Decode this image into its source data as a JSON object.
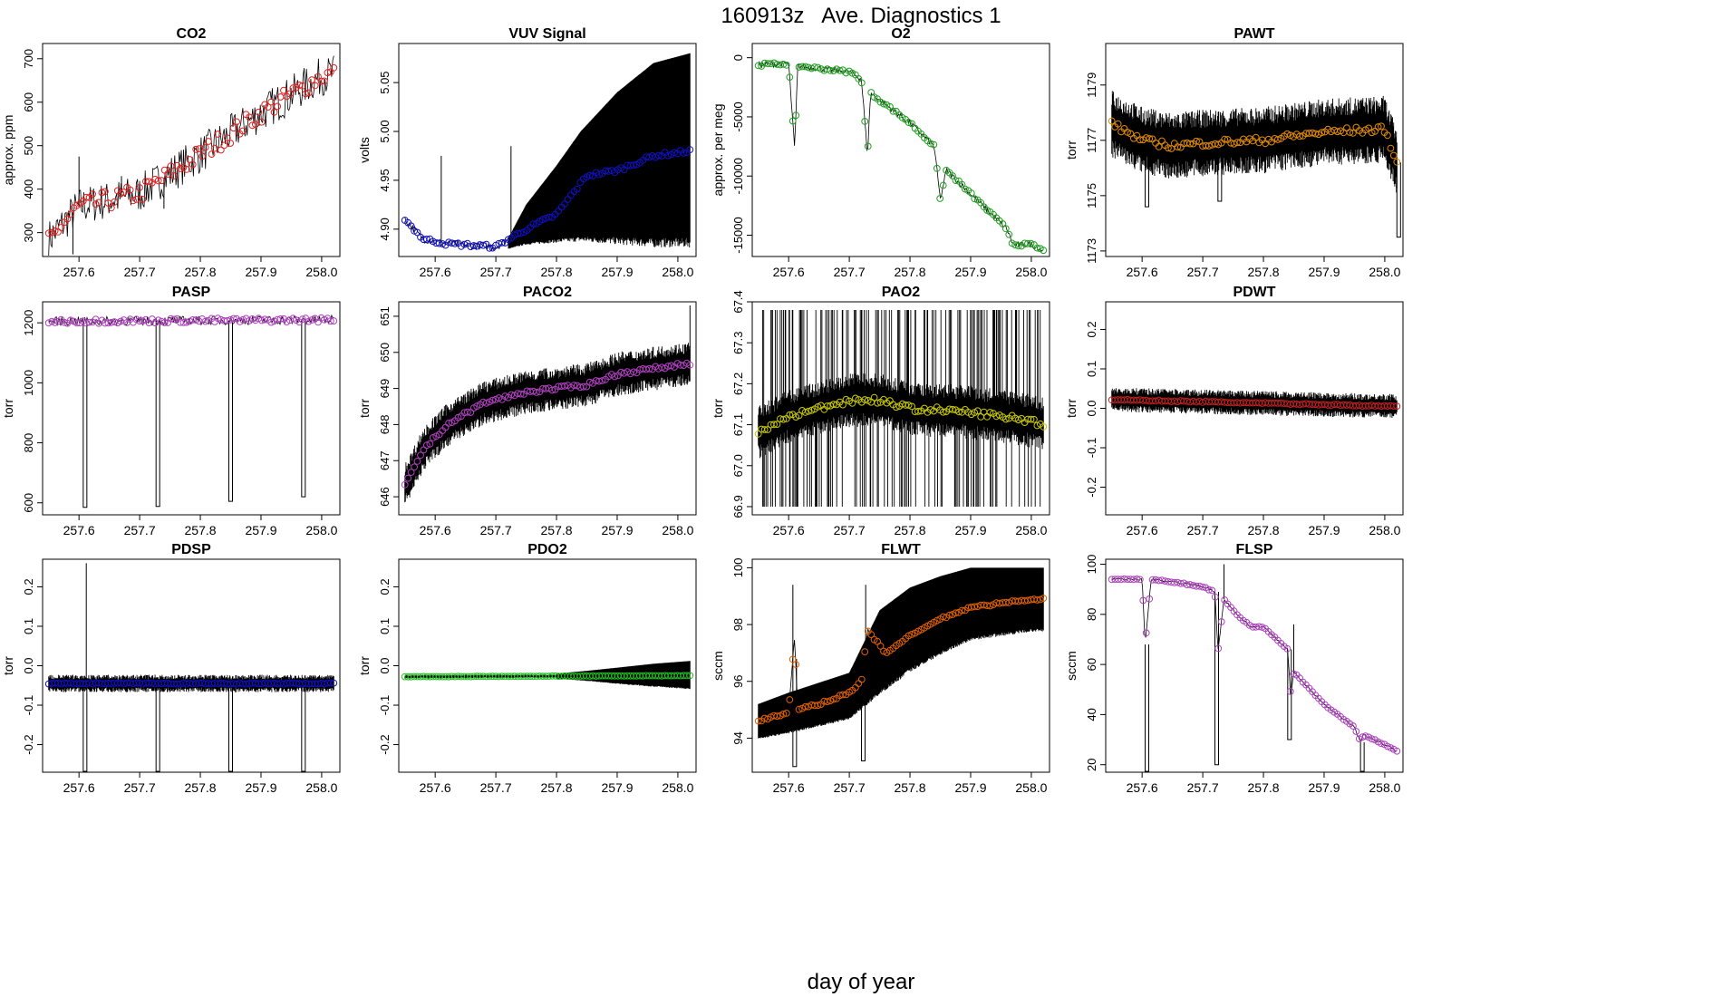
{
  "figure": {
    "title": "160913z   Ave. Diagnostics 1",
    "xlabel": "day of year"
  },
  "chart_data": [
    {
      "type": "line",
      "title": "CO2",
      "ylabel": "approx. ppm",
      "xlim": [
        257.54,
        258.03
      ],
      "ylim": [
        245,
        735
      ],
      "xticks": [
        "257.6",
        "257.7",
        "257.8",
        "257.9",
        "258.0"
      ],
      "yticks": [
        300,
        400,
        500,
        600,
        700
      ],
      "yticklabels": [
        "300",
        "400",
        "500",
        "600",
        "700"
      ],
      "color": "#e02020",
      "trend": [
        [
          257.55,
          285
        ],
        [
          257.6,
          360
        ],
        [
          257.7,
          390
        ],
        [
          257.8,
          480
        ],
        [
          257.9,
          575
        ],
        [
          258.0,
          660
        ],
        [
          258.02,
          665
        ]
      ],
      "noise": 45,
      "band": 0,
      "dips": [],
      "spikes": [
        [
          257.6,
          475
        ],
        [
          257.59,
          250
        ],
        [
          257.67,
          430
        ],
        [
          257.74,
          355
        ]
      ]
    },
    {
      "type": "line",
      "title": "VUV Signal",
      "ylabel": "volts",
      "xlim": [
        257.54,
        258.03
      ],
      "ylim": [
        4.872,
        5.09
      ],
      "xticks": [
        "257.6",
        "257.7",
        "257.8",
        "257.9",
        "258.0"
      ],
      "yticks": [
        4.9,
        4.95,
        5.0,
        5.05
      ],
      "yticklabels": [
        "4.90",
        "4.95",
        "5.00",
        "5.05"
      ],
      "color": "#1010c0",
      "trend": [
        [
          257.55,
          4.91
        ],
        [
          257.58,
          4.89
        ],
        [
          257.62,
          4.885
        ],
        [
          257.7,
          4.882
        ],
        [
          257.75,
          4.9
        ],
        [
          257.8,
          4.915
        ],
        [
          257.85,
          4.955
        ],
        [
          257.9,
          4.96
        ],
        [
          257.96,
          4.975
        ],
        [
          258.02,
          4.98
        ]
      ],
      "noise": 0.004,
      "band": 0,
      "envelope": [
        [
          257.72,
          4.88,
          4.89
        ],
        [
          257.75,
          4.885,
          4.925
        ],
        [
          257.8,
          4.888,
          4.965
        ],
        [
          257.84,
          4.89,
          5.0
        ],
        [
          257.9,
          4.888,
          5.04
        ],
        [
          257.96,
          4.886,
          5.07
        ],
        [
          258.02,
          4.886,
          5.08
        ]
      ],
      "dips": [],
      "spikes": [
        [
          257.61,
          4.975
        ],
        [
          257.725,
          4.985
        ]
      ]
    },
    {
      "type": "line",
      "title": "O2",
      "ylabel": "approx. per meg",
      "xlim": [
        257.54,
        258.03
      ],
      "ylim": [
        -16800,
        1200
      ],
      "xticks": [
        "257.6",
        "257.7",
        "257.8",
        "257.9",
        "258.0"
      ],
      "yticks": [
        0,
        -5000,
        -10000,
        -15000
      ],
      "yticklabels": [
        "0",
        "-5000",
        "-10000",
        "-15000"
      ],
      "color": "#20a020",
      "trend": [
        [
          257.55,
          -600
        ],
        [
          257.6,
          -500
        ],
        [
          257.61,
          -7800
        ],
        [
          257.615,
          -700
        ],
        [
          257.7,
          -1200
        ],
        [
          257.72,
          -1800
        ],
        [
          257.73,
          -8300
        ],
        [
          257.735,
          -3000
        ],
        [
          257.8,
          -5500
        ],
        [
          257.84,
          -7500
        ],
        [
          257.85,
          -12000
        ],
        [
          257.86,
          -9500
        ],
        [
          257.9,
          -11500
        ],
        [
          257.96,
          -14500
        ],
        [
          257.97,
          -15800
        ],
        [
          258.0,
          -15800
        ],
        [
          258.02,
          -16300
        ]
      ],
      "noise": 250,
      "band": 0,
      "dips": [],
      "spikes": []
    },
    {
      "type": "line",
      "title": "PAWT",
      "ylabel": "torr",
      "xlim": [
        257.54,
        258.03
      ],
      "ylim": [
        1172.8,
        1180.5
      ],
      "xticks": [
        "257.6",
        "257.7",
        "257.8",
        "257.9",
        "258.0"
      ],
      "yticks": [
        1173,
        1175,
        1177,
        1179
      ],
      "yticklabels": [
        "1173",
        "1175",
        "1177",
        "1179"
      ],
      "color": "#e08a00",
      "trend": [
        [
          257.55,
          1177.6
        ],
        [
          257.6,
          1177.0
        ],
        [
          257.65,
          1176.8
        ],
        [
          257.7,
          1176.9
        ],
        [
          257.8,
          1177.0
        ],
        [
          257.9,
          1177.3
        ],
        [
          258.0,
          1177.4
        ],
        [
          258.02,
          1176.2
        ]
      ],
      "noise": 0.25,
      "band": 1.1,
      "dips": [
        [
          257.605,
          1174.6
        ],
        [
          257.725,
          1174.8
        ],
        [
          258.02,
          1173.5
        ]
      ],
      "spikes": []
    },
    {
      "type": "line",
      "title": "PASP",
      "ylabel": "torr",
      "xlim": [
        257.54,
        258.03
      ],
      "ylim": [
        560,
        1270
      ],
      "xticks": [
        "257.6",
        "257.7",
        "257.8",
        "257.9",
        "258.0"
      ],
      "yticks": [
        600,
        800,
        1000,
        1200
      ],
      "yticklabels": [
        "600",
        "800",
        "1000",
        "1200"
      ],
      "color": "#b040c0",
      "trend": [
        [
          257.55,
          1205
        ],
        [
          258.02,
          1210
        ]
      ],
      "noise": 15,
      "band": 0,
      "dips": [
        [
          257.607,
          585
        ],
        [
          257.727,
          588
        ],
        [
          257.847,
          605
        ],
        [
          257.967,
          620
        ]
      ],
      "spikes": []
    },
    {
      "type": "line",
      "title": "PACO2",
      "ylabel": "torr",
      "xlim": [
        257.54,
        258.03
      ],
      "ylim": [
        645.5,
        651.4
      ],
      "xticks": [
        "257.6",
        "257.7",
        "257.8",
        "257.9",
        "258.0"
      ],
      "yticks": [
        646,
        647,
        648,
        649,
        650,
        651
      ],
      "yticklabels": [
        "646",
        "647",
        "648",
        "649",
        "650",
        "651"
      ],
      "color": "#b040c0",
      "trend": [
        [
          257.55,
          646.3
        ],
        [
          257.58,
          647.3
        ],
        [
          257.62,
          648.0
        ],
        [
          257.68,
          648.6
        ],
        [
          257.75,
          648.9
        ],
        [
          257.8,
          649.0
        ],
        [
          257.85,
          649.1
        ],
        [
          257.9,
          649.4
        ],
        [
          258.0,
          649.65
        ],
        [
          258.02,
          649.7
        ]
      ],
      "noise": 0.1,
      "band": 0.55,
      "dips": [],
      "spikes": [
        [
          258.02,
          651.3
        ]
      ]
    },
    {
      "type": "line",
      "title": "PAO2",
      "ylabel": "torr",
      "xlim": [
        257.54,
        258.03
      ],
      "ylim": [
        66.88,
        67.4
      ],
      "xticks": [
        "257.6",
        "257.7",
        "257.8",
        "257.9",
        "258.0"
      ],
      "yticks": [
        66.9,
        67.0,
        67.1,
        67.2,
        67.3,
        67.4
      ],
      "yticklabels": [
        "66.9",
        "67.0",
        "67.1",
        "67.2",
        "67.3",
        "67.4"
      ],
      "color": "#c8c800",
      "trend": [
        [
          257.55,
          67.08
        ],
        [
          257.6,
          67.12
        ],
        [
          257.7,
          67.16
        ],
        [
          257.75,
          67.16
        ],
        [
          257.8,
          67.14
        ],
        [
          257.9,
          67.13
        ],
        [
          258.0,
          67.11
        ],
        [
          258.02,
          67.1
        ]
      ],
      "noise": 0.015,
      "band": 0.06,
      "bars": [
        66.9,
        67.38
      ],
      "dips": [],
      "spikes": []
    },
    {
      "type": "line",
      "title": "PDWT",
      "ylabel": "torr",
      "xlim": [
        257.54,
        258.03
      ],
      "ylim": [
        -0.27,
        0.27
      ],
      "xticks": [
        "257.6",
        "257.7",
        "257.8",
        "257.9",
        "258.0"
      ],
      "yticks": [
        -0.2,
        -0.1,
        0.0,
        0.1,
        0.2
      ],
      "yticklabels": [
        "-0.2",
        "-0.1",
        "0.0",
        "0.1",
        "0.2"
      ],
      "color": "#c02020",
      "trend": [
        [
          257.55,
          0.022
        ],
        [
          258.02,
          0.005
        ]
      ],
      "noise": 0.003,
      "band": 0.028,
      "dips": [],
      "spikes": []
    },
    {
      "type": "line",
      "title": "PDSP",
      "ylabel": "torr",
      "xlim": [
        257.54,
        258.03
      ],
      "ylim": [
        -0.27,
        0.27
      ],
      "xticks": [
        "257.6",
        "257.7",
        "257.8",
        "257.9",
        "258.0"
      ],
      "yticks": [
        -0.2,
        -0.1,
        0.0,
        0.1,
        0.2
      ],
      "yticklabels": [
        "-0.2",
        "-0.1",
        "0.0",
        "0.1",
        "0.2"
      ],
      "color": "#1010c0",
      "trend": [
        [
          257.55,
          -0.045
        ],
        [
          258.02,
          -0.045
        ]
      ],
      "noise": 0.003,
      "band": 0.02,
      "dips": [
        [
          257.607,
          -0.27
        ],
        [
          257.727,
          -0.27
        ],
        [
          257.847,
          -0.27
        ],
        [
          257.967,
          -0.27
        ]
      ],
      "spikes": [
        [
          257.612,
          0.26
        ]
      ]
    },
    {
      "type": "line",
      "title": "PDO2",
      "ylabel": "torr",
      "xlim": [
        257.54,
        258.03
      ],
      "ylim": [
        -0.27,
        0.27
      ],
      "xticks": [
        "257.6",
        "257.7",
        "257.8",
        "257.9",
        "258.0"
      ],
      "yticks": [
        -0.2,
        -0.1,
        0.0,
        0.1,
        0.2
      ],
      "yticklabels": [
        "-0.2",
        "-0.1",
        "0.0",
        "0.1",
        "0.2"
      ],
      "color": "#20c020",
      "trend": [
        [
          257.55,
          -0.028
        ],
        [
          258.02,
          -0.025
        ]
      ],
      "noise": 0.001,
      "band": 0.004,
      "envelope": [
        [
          257.8,
          -0.033,
          -0.02
        ],
        [
          257.85,
          -0.038,
          -0.013
        ],
        [
          257.9,
          -0.045,
          -0.005
        ],
        [
          257.96,
          -0.052,
          0.005
        ],
        [
          258.02,
          -0.058,
          0.012
        ]
      ],
      "dips": [],
      "spikes": []
    },
    {
      "type": "line",
      "title": "FLWT",
      "ylabel": "sccm",
      "xlim": [
        257.54,
        258.03
      ],
      "ylim": [
        92.8,
        100.3
      ],
      "xticks": [
        "257.6",
        "257.7",
        "257.8",
        "257.9",
        "258.0"
      ],
      "yticks": [
        94,
        96,
        98,
        100
      ],
      "yticklabels": [
        "94",
        "96",
        "98",
        "100"
      ],
      "color": "#e06000",
      "trend": [
        [
          257.55,
          94.6
        ],
        [
          257.6,
          94.9
        ],
        [
          257.61,
          97.6
        ],
        [
          257.615,
          95.0
        ],
        [
          257.65,
          95.2
        ],
        [
          257.7,
          95.6
        ],
        [
          257.72,
          96.0
        ],
        [
          257.73,
          97.8
        ],
        [
          257.76,
          97.0
        ],
        [
          257.8,
          97.6
        ],
        [
          257.85,
          98.2
        ],
        [
          257.9,
          98.6
        ],
        [
          258.0,
          98.9
        ],
        [
          258.02,
          98.9
        ]
      ],
      "noise": 0.08,
      "band": 0.6,
      "envelope": [
        [
          257.55,
          94.0,
          95.2
        ],
        [
          257.6,
          94.2,
          95.6
        ],
        [
          257.7,
          94.7,
          96.3
        ],
        [
          257.75,
          95.6,
          98.5
        ],
        [
          257.8,
          96.4,
          99.3
        ],
        [
          257.85,
          97.0,
          99.7
        ],
        [
          257.9,
          97.5,
          100.0
        ],
        [
          258.0,
          97.8,
          100.0
        ],
        [
          258.02,
          97.8,
          100.0
        ]
      ],
      "dips": [
        [
          257.607,
          93.0
        ],
        [
          257.72,
          93.2
        ]
      ],
      "spikes": [
        [
          257.607,
          99.4
        ],
        [
          257.727,
          99.4
        ]
      ]
    },
    {
      "type": "line",
      "title": "FLSP",
      "ylabel": "sccm",
      "xlim": [
        257.54,
        258.03
      ],
      "ylim": [
        17,
        102
      ],
      "xticks": [
        "257.6",
        "257.7",
        "257.8",
        "257.9",
        "258.0"
      ],
      "yticks": [
        20,
        40,
        60,
        80,
        100
      ],
      "yticklabels": [
        "20",
        "40",
        "60",
        "80",
        "100"
      ],
      "color": "#b040c0",
      "trend": [
        [
          257.55,
          94
        ],
        [
          257.6,
          94
        ],
        [
          257.605,
          68
        ],
        [
          257.615,
          94
        ],
        [
          257.65,
          93
        ],
        [
          257.7,
          91
        ],
        [
          257.72,
          89
        ],
        [
          257.725,
          65
        ],
        [
          257.735,
          86
        ],
        [
          257.76,
          79
        ],
        [
          257.78,
          75
        ],
        [
          257.8,
          75
        ],
        [
          257.84,
          66
        ],
        [
          257.845,
          47
        ],
        [
          257.85,
          57
        ],
        [
          257.9,
          44
        ],
        [
          257.95,
          35
        ],
        [
          257.96,
          29
        ],
        [
          257.965,
          32
        ],
        [
          258.0,
          28
        ],
        [
          258.02,
          25.5
        ]
      ],
      "noise": 0.4,
      "band": 0,
      "dips": [
        [
          257.605,
          15
        ],
        [
          257.72,
          20
        ],
        [
          257.84,
          30
        ],
        [
          257.96,
          15
        ]
      ],
      "spikes": [
        [
          257.735,
          100
        ],
        [
          257.85,
          76
        ]
      ]
    }
  ]
}
